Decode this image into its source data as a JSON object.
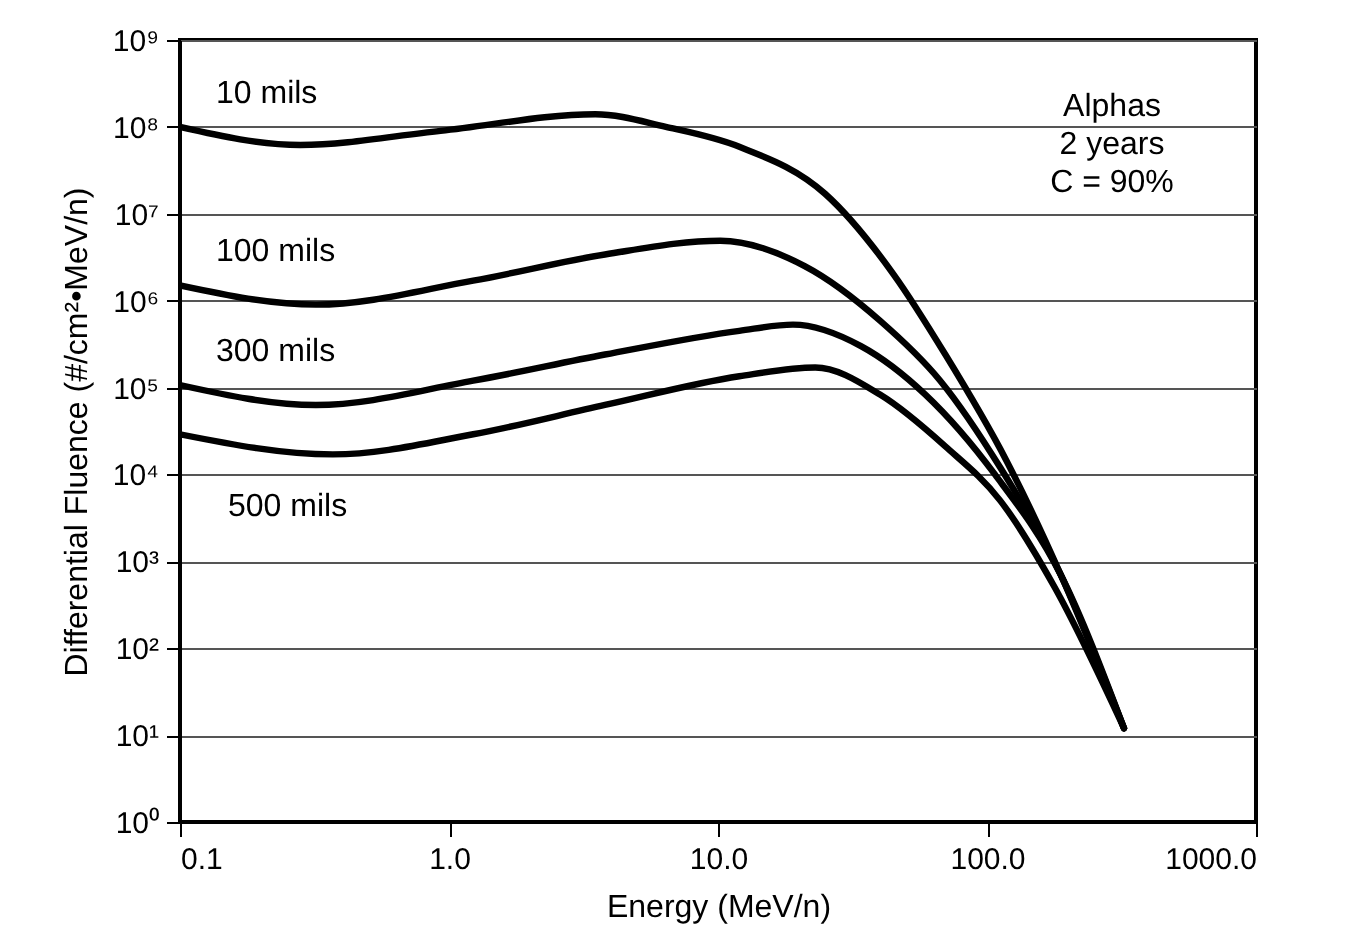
{
  "chart_data": {
    "type": "line",
    "xlabel": "Energy (MeV/n)",
    "ylabel": "Differential Fluence (#/cm²•MeV/n)",
    "annotations": [
      "Alphas",
      "2 years",
      "C = 90%"
    ],
    "log": "xy",
    "grid": "y",
    "line_style": "solid",
    "xlim": [
      0.1,
      1000
    ],
    "xticks": [
      0.1,
      {
        "value": 1,
        "label": "1.0"
      },
      {
        "value": 10,
        "label": "10.0"
      },
      {
        "value": 100,
        "label": "100.0"
      },
      {
        "value": 1000,
        "label": "1000.0"
      }
    ],
    "ylim": [
      1,
      1000000000
    ],
    "yticks": [
      {
        "value": 1,
        "label": "10⁰"
      },
      {
        "value": 10,
        "label": "10¹"
      },
      {
        "value": 100,
        "label": "10²"
      },
      {
        "value": 1000,
        "label": "10³"
      },
      {
        "value": 10000,
        "label": "10⁴"
      },
      {
        "value": 100000,
        "label": "10⁵"
      },
      {
        "value": 1000000,
        "label": "10⁶"
      },
      {
        "value": 10000000,
        "label": "10⁷"
      },
      {
        "value": 100000000,
        "label": "10⁸"
      },
      {
        "value": 1000000000,
        "label": "10⁹"
      }
    ],
    "series": [
      {
        "name": "10 mils",
        "color": "#000000",
        "x": [
          0.1,
          0.28,
          0.93,
          3.5,
          6.4,
          12,
          25,
          45,
          70,
          118,
          188,
          323
        ],
        "values": [
          100000000,
          62000000,
          90000000,
          140000000,
          100000000,
          59000000,
          17000000,
          2000000,
          240000,
          14500,
          700,
          12
        ]
      },
      {
        "name": "100 mils",
        "color": "#000000",
        "x": [
          0.1,
          0.32,
          1.23,
          3.8,
          10.2,
          21,
          40,
          67,
          112,
          188,
          323
        ],
        "values": [
          1500000,
          900000,
          1700000,
          3400000,
          4900000,
          2500000,
          590000,
          120000,
          12000,
          700,
          12
        ]
      },
      {
        "name": "300 mils",
        "color": "#000000",
        "x": [
          0.1,
          0.32,
          1.23,
          3.8,
          12,
          19,
          34,
          59,
          107,
          188,
          323
        ],
        "values": [
          107000,
          63000,
          120000,
          240000,
          450000,
          530000,
          300000,
          83000,
          10000,
          700,
          12
        ]
      },
      {
        "name": "500 mils",
        "color": "#000000",
        "x": [
          0.1,
          0.37,
          1.23,
          3.8,
          12,
          23,
          40,
          70,
          112,
          178,
          323
        ],
        "values": [
          29000,
          17000,
          29000,
          63000,
          135000,
          170000,
          83000,
          21000,
          5000,
          510,
          12
        ]
      }
    ]
  }
}
